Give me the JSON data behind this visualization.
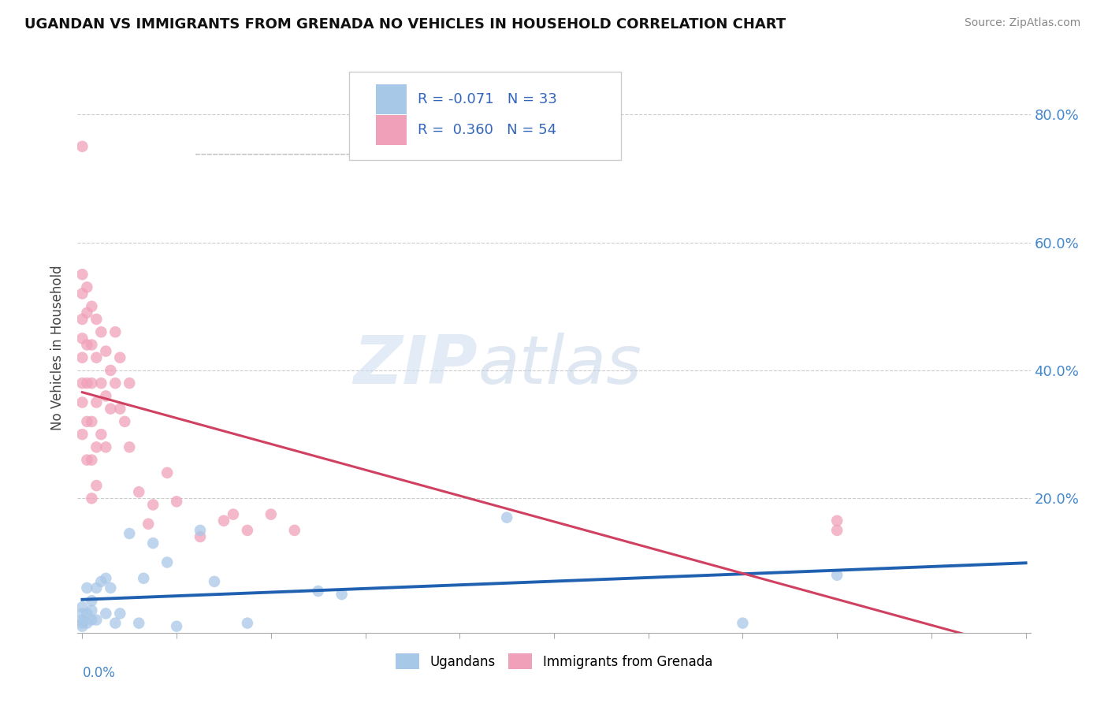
{
  "title": "UGANDAN VS IMMIGRANTS FROM GRENADA NO VEHICLES IN HOUSEHOLD CORRELATION CHART",
  "source": "Source: ZipAtlas.com",
  "ylabel": "No Vehicles in Household",
  "legend_label1": "Ugandans",
  "legend_label2": "Immigrants from Grenada",
  "r1": -0.071,
  "n1": 33,
  "r2": 0.36,
  "n2": 54,
  "color_blue": "#a8c8e8",
  "color_pink": "#f0a0b8",
  "line_color_blue": "#2060b0",
  "line_color_pink": "#d04060",
  "watermark_zip": "ZIP",
  "watermark_atlas": "atlas",
  "xlim": [
    0.0,
    0.2
  ],
  "ylim": [
    0.0,
    0.88
  ],
  "yticks": [
    0.0,
    0.2,
    0.4,
    0.6,
    0.8
  ],
  "ytick_labels": [
    "",
    "20.0%",
    "40.0%",
    "60.0%",
    "80.0%"
  ],
  "blue_x": [
    0.0,
    0.0,
    0.0,
    0.0,
    0.0,
    0.001,
    0.001,
    0.001,
    0.002,
    0.002,
    0.002,
    0.003,
    0.003,
    0.004,
    0.005,
    0.005,
    0.006,
    0.007,
    0.008,
    0.01,
    0.012,
    0.013,
    0.015,
    0.018,
    0.02,
    0.025,
    0.028,
    0.035,
    0.05,
    0.055,
    0.09,
    0.14,
    0.16
  ],
  "blue_y": [
    0.03,
    0.02,
    0.01,
    0.005,
    0.0,
    0.06,
    0.02,
    0.005,
    0.04,
    0.025,
    0.01,
    0.06,
    0.01,
    0.07,
    0.075,
    0.02,
    0.06,
    0.005,
    0.02,
    0.145,
    0.005,
    0.075,
    0.13,
    0.1,
    0.0,
    0.15,
    0.07,
    0.005,
    0.055,
    0.05,
    0.17,
    0.005,
    0.08
  ],
  "pink_x": [
    0.0,
    0.0,
    0.0,
    0.0,
    0.0,
    0.0,
    0.0,
    0.0,
    0.0,
    0.001,
    0.001,
    0.001,
    0.001,
    0.001,
    0.001,
    0.002,
    0.002,
    0.002,
    0.002,
    0.002,
    0.002,
    0.003,
    0.003,
    0.003,
    0.003,
    0.003,
    0.004,
    0.004,
    0.004,
    0.005,
    0.005,
    0.005,
    0.006,
    0.006,
    0.007,
    0.007,
    0.008,
    0.008,
    0.009,
    0.01,
    0.01,
    0.012,
    0.014,
    0.015,
    0.018,
    0.02,
    0.025,
    0.03,
    0.032,
    0.035,
    0.04,
    0.045,
    0.16,
    0.16
  ],
  "pink_y": [
    0.55,
    0.52,
    0.48,
    0.45,
    0.42,
    0.38,
    0.35,
    0.3,
    0.75,
    0.53,
    0.49,
    0.44,
    0.38,
    0.32,
    0.26,
    0.5,
    0.44,
    0.38,
    0.32,
    0.26,
    0.2,
    0.48,
    0.42,
    0.35,
    0.28,
    0.22,
    0.46,
    0.38,
    0.3,
    0.43,
    0.36,
    0.28,
    0.4,
    0.34,
    0.46,
    0.38,
    0.42,
    0.34,
    0.32,
    0.28,
    0.38,
    0.21,
    0.16,
    0.19,
    0.24,
    0.195,
    0.14,
    0.165,
    0.175,
    0.15,
    0.175,
    0.15,
    0.165,
    0.15
  ]
}
